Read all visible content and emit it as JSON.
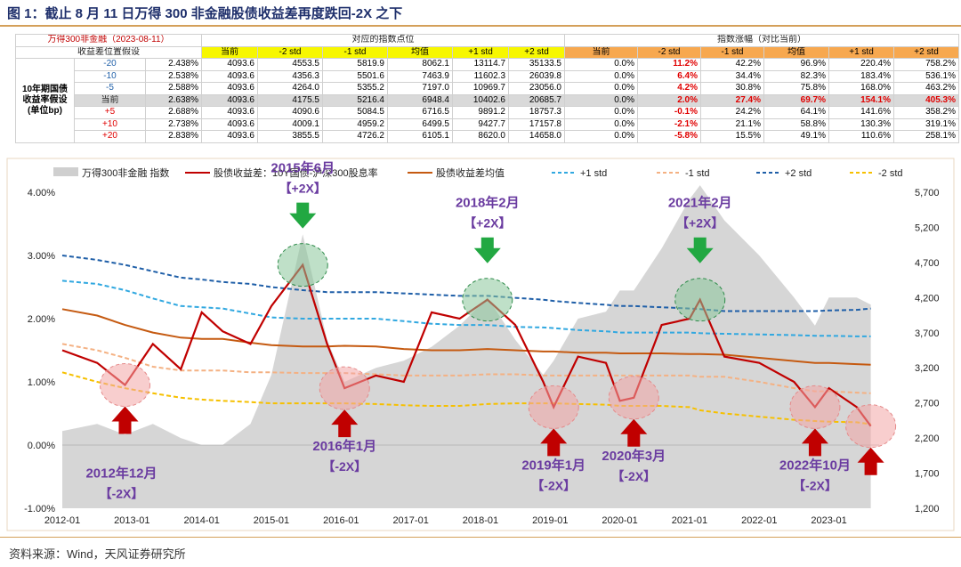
{
  "title": "图 1：截止 8 月 11 日万得 300 非金融股债收益差再度跌回-2X 之下",
  "source": "资料来源：Wind，天风证券研究所",
  "table": {
    "title_cell": "万得300非金融（2023-08-11）",
    "assumption_header": "收益差位置假设",
    "group1": "对应的指数点位",
    "group2": "指数涨幅（对比当前）",
    "row_label": "10年期国债收益率假设(单位bp)",
    "cols": [
      "当前",
      "-2 std",
      "-1 std",
      "均值",
      "+1 std",
      "+2 std"
    ],
    "rows": [
      {
        "bp": "-20",
        "yield": "2.438%",
        "pts": [
          "4093.6",
          "4553.5",
          "5819.9",
          "8062.1",
          "13114.7",
          "35133.5"
        ],
        "pct": [
          "0.0%",
          "11.2%",
          "42.2%",
          "96.9%",
          "220.4%",
          "758.2%"
        ],
        "hl": [
          false,
          true,
          false,
          false,
          false,
          false
        ]
      },
      {
        "bp": "-10",
        "yield": "2.538%",
        "pts": [
          "4093.6",
          "4356.3",
          "5501.6",
          "7463.9",
          "11602.3",
          "26039.8"
        ],
        "pct": [
          "0.0%",
          "6.4%",
          "34.4%",
          "82.3%",
          "183.4%",
          "536.1%"
        ],
        "hl": [
          false,
          true,
          false,
          false,
          false,
          false
        ]
      },
      {
        "bp": "-5",
        "yield": "2.588%",
        "pts": [
          "4093.6",
          "4264.0",
          "5355.2",
          "7197.0",
          "10969.7",
          "23056.0"
        ],
        "pct": [
          "0.0%",
          "4.2%",
          "30.8%",
          "75.8%",
          "168.0%",
          "463.2%"
        ],
        "hl": [
          false,
          true,
          false,
          false,
          false,
          false
        ]
      },
      {
        "bp": "当前",
        "yield": "2.638%",
        "pts": [
          "4093.6",
          "4175.5",
          "5216.4",
          "6948.4",
          "10402.6",
          "20685.7"
        ],
        "pct": [
          "0.0%",
          "2.0%",
          "27.4%",
          "69.7%",
          "154.1%",
          "405.3%"
        ],
        "hl": [
          false,
          true,
          true,
          true,
          true,
          true
        ],
        "current": true
      },
      {
        "bp": "+5",
        "yield": "2.688%",
        "pts": [
          "4093.6",
          "4090.6",
          "5084.5",
          "6716.5",
          "9891.2",
          "18757.3"
        ],
        "pct": [
          "0.0%",
          "-0.1%",
          "24.2%",
          "64.1%",
          "141.6%",
          "358.2%"
        ],
        "hl": [
          false,
          true,
          false,
          false,
          false,
          false
        ]
      },
      {
        "bp": "+10",
        "yield": "2.738%",
        "pts": [
          "4093.6",
          "4009.1",
          "4959.2",
          "6499.5",
          "9427.7",
          "17157.8"
        ],
        "pct": [
          "0.0%",
          "-2.1%",
          "21.1%",
          "58.8%",
          "130.3%",
          "319.1%"
        ],
        "hl": [
          false,
          true,
          false,
          false,
          false,
          false
        ]
      },
      {
        "bp": "+20",
        "yield": "2.838%",
        "pts": [
          "4093.6",
          "3855.5",
          "4726.2",
          "6105.1",
          "8620.0",
          "14658.0"
        ],
        "pct": [
          "0.0%",
          "-5.8%",
          "15.5%",
          "49.1%",
          "110.6%",
          "258.1%"
        ],
        "hl": [
          false,
          true,
          false,
          false,
          false,
          false
        ]
      }
    ]
  },
  "chart_data": {
    "type": "line",
    "legend": [
      "万得300非金融 指数",
      "股债收益差：10Y国债-沪深300股息率",
      "股债收益差均值",
      "+1 std",
      "-1 std",
      "+2 std",
      "-2 std"
    ],
    "legend_placement": "top",
    "x_ticks": [
      "2012-01",
      "2013-01",
      "2014-01",
      "2015-01",
      "2016-01",
      "2017-01",
      "2018-01",
      "2019-01",
      "2020-01",
      "2021-01",
      "2022-01",
      "2023-01"
    ],
    "y_left": {
      "ticks": [
        "-1.00%",
        "0.00%",
        "1.00%",
        "2.00%",
        "3.00%",
        "4.00%"
      ],
      "range": [
        -1.0,
        4.0
      ]
    },
    "y_right": {
      "ticks": [
        "1,200",
        "1,700",
        "2,200",
        "2,700",
        "3,200",
        "3,700",
        "4,200",
        "4,700",
        "5,200",
        "5,700"
      ],
      "range": [
        1200,
        5700
      ]
    },
    "colors": {
      "index": "#cfcfcf",
      "spread": "#c00000",
      "mean": "#c55a11",
      "p1": "#31a8e0",
      "m1": "#f4b183",
      "p2": "#1f5fa8",
      "m2": "#f6c000",
      "arrow_up": "#c00000",
      "arrow_down": "#22a842"
    },
    "x": [
      2012.0,
      2012.5,
      2012.9,
      2013.3,
      2013.7,
      2014.0,
      2014.3,
      2014.7,
      2015.0,
      2015.45,
      2015.8,
      2016.05,
      2016.5,
      2016.9,
      2017.3,
      2017.7,
      2018.1,
      2018.5,
      2018.9,
      2019.05,
      2019.4,
      2019.8,
      2020.0,
      2020.2,
      2020.6,
      2021.0,
      2021.15,
      2021.5,
      2022.0,
      2022.5,
      2022.8,
      2023.0,
      2023.4,
      2023.6
    ],
    "spread": [
      1.5,
      1.3,
      0.95,
      1.6,
      1.2,
      2.1,
      1.8,
      1.6,
      2.2,
      2.85,
      1.6,
      0.9,
      1.1,
      1.0,
      2.1,
      2.0,
      2.3,
      1.9,
      1.0,
      0.6,
      1.4,
      1.3,
      0.7,
      0.75,
      1.9,
      2.0,
      2.3,
      1.4,
      1.3,
      1.0,
      0.6,
      0.9,
      0.6,
      0.3
    ],
    "mean": [
      2.15,
      2.05,
      1.9,
      1.78,
      1.7,
      1.68,
      1.68,
      1.62,
      1.58,
      1.56,
      1.56,
      1.57,
      1.56,
      1.52,
      1.5,
      1.5,
      1.52,
      1.5,
      1.48,
      1.48,
      1.46,
      1.46,
      1.45,
      1.45,
      1.45,
      1.44,
      1.44,
      1.43,
      1.38,
      1.33,
      1.3,
      1.3,
      1.28,
      1.27
    ],
    "plus1": [
      2.6,
      2.55,
      2.45,
      2.32,
      2.2,
      2.18,
      2.16,
      2.08,
      2.02,
      2.0,
      2.0,
      2.0,
      2.0,
      1.96,
      1.92,
      1.9,
      1.9,
      1.87,
      1.86,
      1.85,
      1.82,
      1.8,
      1.78,
      1.78,
      1.78,
      1.78,
      1.77,
      1.76,
      1.75,
      1.74,
      1.73,
      1.73,
      1.72,
      1.72
    ],
    "minus1": [
      1.6,
      1.5,
      1.38,
      1.24,
      1.18,
      1.18,
      1.18,
      1.15,
      1.15,
      1.14,
      1.14,
      1.14,
      1.12,
      1.1,
      1.1,
      1.1,
      1.12,
      1.12,
      1.1,
      1.1,
      1.1,
      1.1,
      1.1,
      1.1,
      1.1,
      1.1,
      1.08,
      1.08,
      1.0,
      0.9,
      0.85,
      0.85,
      0.83,
      0.82
    ],
    "plus2": [
      3.0,
      2.93,
      2.85,
      2.75,
      2.65,
      2.62,
      2.58,
      2.55,
      2.5,
      2.45,
      2.42,
      2.42,
      2.42,
      2.4,
      2.38,
      2.36,
      2.36,
      2.33,
      2.3,
      2.28,
      2.25,
      2.22,
      2.2,
      2.2,
      2.18,
      2.16,
      2.15,
      2.12,
      2.12,
      2.12,
      2.12,
      2.13,
      2.14,
      2.16
    ],
    "minus2": [
      1.15,
      1.0,
      0.9,
      0.82,
      0.75,
      0.72,
      0.7,
      0.68,
      0.66,
      0.66,
      0.66,
      0.66,
      0.65,
      0.63,
      0.62,
      0.62,
      0.65,
      0.66,
      0.66,
      0.66,
      0.65,
      0.64,
      0.62,
      0.62,
      0.62,
      0.6,
      0.55,
      0.5,
      0.45,
      0.4,
      0.38,
      0.37,
      0.36,
      0.33
    ],
    "index": [
      2300,
      2400,
      2250,
      2400,
      2200,
      2100,
      2100,
      2400,
      3100,
      5100,
      3600,
      3000,
      3200,
      3300,
      3500,
      3800,
      4200,
      3600,
      3100,
      3300,
      3900,
      4000,
      4300,
      4300,
      4900,
      5600,
      5800,
      5300,
      4800,
      4200,
      3800,
      4200,
      4200,
      4100
    ],
    "annotations": [
      {
        "text": "2015年6月",
        "tag": "【+2X】",
        "x": 2015.45,
        "dir": "down"
      },
      {
        "text": "2018年2月",
        "tag": "【+2X】",
        "x": 2018.1,
        "dir": "down"
      },
      {
        "text": "2021年2月",
        "tag": "【+2X】",
        "x": 2021.15,
        "dir": "down"
      },
      {
        "text": "2012年12月",
        "tag": "【-2X】",
        "x": 2012.9,
        "dir": "up"
      },
      {
        "text": "2016年1月",
        "tag": "【-2X】",
        "x": 2016.05,
        "dir": "up"
      },
      {
        "text": "2019年1月",
        "tag": "【-2X】",
        "x": 2019.05,
        "dir": "up"
      },
      {
        "text": "2020年3月",
        "tag": "【-2X】",
        "x": 2020.2,
        "dir": "up"
      },
      {
        "text": "2022年10月",
        "tag": "【-2X】",
        "x": 2022.8,
        "dir": "up"
      },
      {
        "text": "",
        "tag": "",
        "x": 2023.6,
        "dir": "up"
      }
    ]
  }
}
